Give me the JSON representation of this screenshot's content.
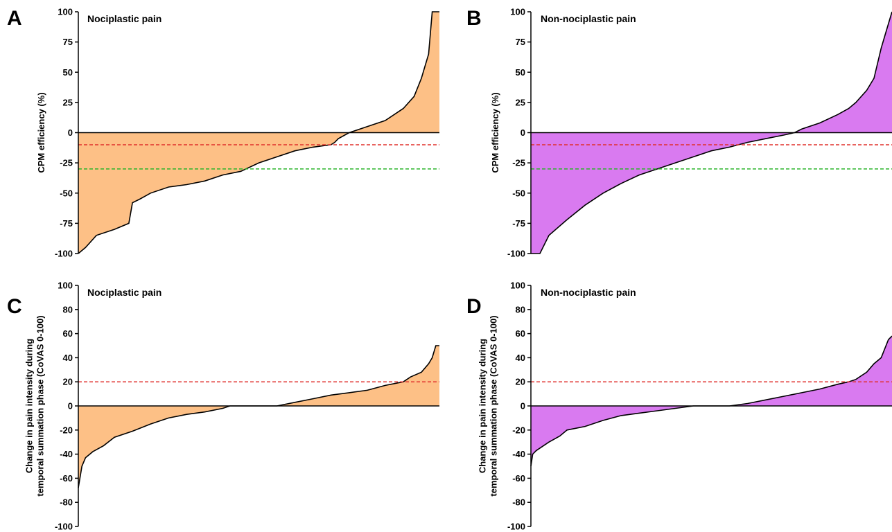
{
  "colors": {
    "nociplastic_fill": "#fdc086",
    "non_nociplastic_fill": "#d97af0",
    "red_line": "#e0302c",
    "green_line": "#2ab52a",
    "curve": "#000000"
  },
  "chart_data": [
    {
      "id": "A",
      "type": "area",
      "letter": "A",
      "title": "Nociplastic pain",
      "ylabel": [
        "CPM efficiency (%)"
      ],
      "ylim": [
        -100,
        100
      ],
      "yticks": [
        100,
        75,
        50,
        25,
        0,
        -25,
        -50,
        -75,
        -100
      ],
      "fill_color": "#fdc086",
      "reference_lines": [
        {
          "y": -10,
          "color": "#e0302c"
        },
        {
          "y": -30,
          "color": "#2ab52a"
        }
      ],
      "series": {
        "x": [
          0,
          0.02,
          0.05,
          0.1,
          0.14,
          0.15,
          0.17,
          0.2,
          0.25,
          0.3,
          0.35,
          0.4,
          0.45,
          0.5,
          0.55,
          0.6,
          0.65,
          0.7,
          0.71,
          0.72,
          0.75,
          0.8,
          0.85,
          0.9,
          0.93,
          0.95,
          0.96,
          0.97,
          0.98,
          1.0
        ],
        "y": [
          -100,
          -95,
          -85,
          -80,
          -75,
          -58,
          -55,
          -50,
          -45,
          -43,
          -40,
          -35,
          -32,
          -25,
          -20,
          -15,
          -12,
          -10,
          -8,
          -5,
          0,
          5,
          10,
          20,
          30,
          45,
          55,
          65,
          100,
          100
        ]
      }
    },
    {
      "id": "B",
      "type": "area",
      "letter": "B",
      "title": "Non-nociplastic pain",
      "ylabel": [
        "CPM efficiency (%)"
      ],
      "ylim": [
        -100,
        100
      ],
      "yticks": [
        100,
        75,
        50,
        25,
        0,
        -25,
        -50,
        -75,
        -100
      ],
      "fill_color": "#d97af0",
      "reference_lines": [
        {
          "y": -10,
          "color": "#e0302c"
        },
        {
          "y": -30,
          "color": "#2ab52a"
        }
      ],
      "series": {
        "x": [
          0,
          0.025,
          0.05,
          0.1,
          0.15,
          0.2,
          0.25,
          0.3,
          0.35,
          0.4,
          0.45,
          0.5,
          0.55,
          0.6,
          0.65,
          0.7,
          0.73,
          0.75,
          0.8,
          0.85,
          0.88,
          0.9,
          0.93,
          0.95,
          0.97,
          0.98,
          1.0
        ],
        "y": [
          -100,
          -100,
          -85,
          -72,
          -60,
          -50,
          -42,
          -35,
          -30,
          -25,
          -20,
          -15,
          -12,
          -8,
          -5,
          -2,
          0,
          3,
          8,
          15,
          20,
          25,
          35,
          45,
          70,
          80,
          100
        ]
      }
    },
    {
      "id": "C",
      "type": "area",
      "letter": "C",
      "title": "Nociplastic pain",
      "ylabel": [
        "Change in pain intensity during",
        "temporal summation phase (CoVAS 0-100)"
      ],
      "ylim": [
        -100,
        100
      ],
      "yticks": [
        100,
        80,
        60,
        40,
        20,
        0,
        -20,
        -40,
        -60,
        -80,
        -100
      ],
      "fill_color": "#fdc086",
      "reference_lines": [
        {
          "y": 20,
          "color": "#e0302c"
        }
      ],
      "series": {
        "x": [
          0,
          0.01,
          0.02,
          0.04,
          0.07,
          0.1,
          0.15,
          0.2,
          0.25,
          0.3,
          0.35,
          0.4,
          0.42,
          0.45,
          0.55,
          0.6,
          0.65,
          0.7,
          0.75,
          0.8,
          0.85,
          0.9,
          0.92,
          0.95,
          0.97,
          0.98,
          0.99,
          1.0
        ],
        "y": [
          -68,
          -50,
          -43,
          -38,
          -33,
          -26,
          -21,
          -15,
          -10,
          -7,
          -5,
          -2,
          0,
          0,
          0,
          3,
          6,
          9,
          11,
          13,
          17,
          20,
          24,
          28,
          35,
          40,
          50,
          50
        ]
      }
    },
    {
      "id": "D",
      "type": "area",
      "letter": "D",
      "title": "Non-nociplastic pain",
      "ylabel": [
        "Change in pain intensity during",
        "temporal summation phase (CoVAS 0-100)"
      ],
      "ylim": [
        -100,
        100
      ],
      "yticks": [
        100,
        80,
        60,
        40,
        20,
        0,
        -20,
        -40,
        -60,
        -80,
        -100
      ],
      "fill_color": "#d97af0",
      "reference_lines": [
        {
          "y": 20,
          "color": "#e0302c"
        }
      ],
      "series": {
        "x": [
          0,
          0.005,
          0.015,
          0.03,
          0.05,
          0.08,
          0.1,
          0.15,
          0.2,
          0.25,
          0.3,
          0.35,
          0.4,
          0.45,
          0.5,
          0.52,
          0.55,
          0.6,
          0.65,
          0.7,
          0.75,
          0.8,
          0.85,
          0.88,
          0.9,
          0.93,
          0.95,
          0.97,
          0.99,
          1.0
        ],
        "y": [
          -50,
          -40,
          -37,
          -34,
          -30,
          -25,
          -20,
          -17,
          -12,
          -8,
          -6,
          -4,
          -2,
          0,
          0,
          0,
          0,
          2,
          5,
          8,
          11,
          14,
          18,
          20,
          22,
          28,
          35,
          40,
          55,
          58
        ]
      }
    }
  ]
}
